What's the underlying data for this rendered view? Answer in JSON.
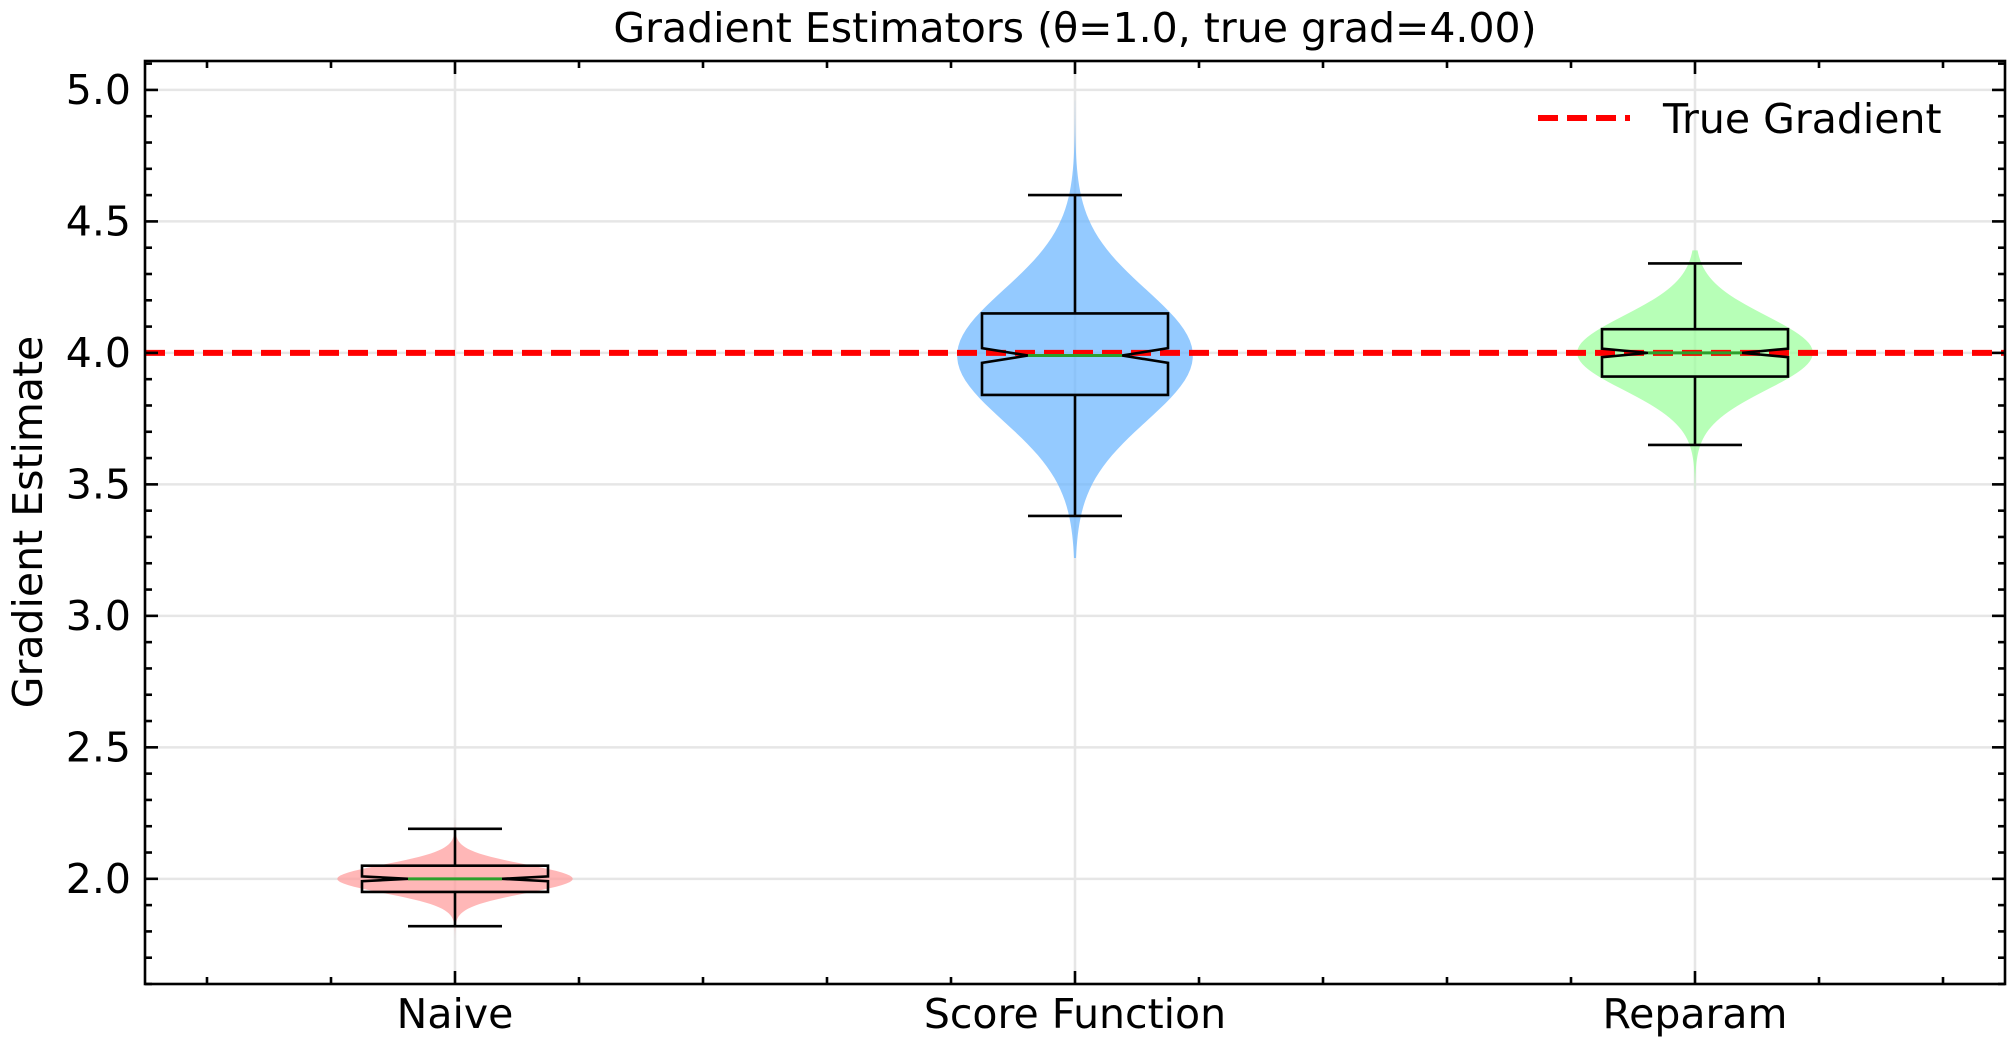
{
  "chart_data": {
    "type": "violin",
    "title": "Gradient Estimators (θ=1.0, true grad=4.00)",
    "xlabel": "",
    "ylabel": "Gradient Estimate",
    "ylim": [
      1.6,
      5.11
    ],
    "xlim": [
      0.5,
      3.5
    ],
    "grid": true,
    "yticks": [
      2.0,
      2.5,
      3.0,
      3.5,
      4.0,
      4.5,
      5.0
    ],
    "ytick_labels": [
      "2.0",
      "2.5",
      "3.0",
      "3.5",
      "4.0",
      "4.5",
      "5.0"
    ],
    "categories": [
      "Naive",
      "Score Function",
      "Reparam"
    ],
    "series": [
      {
        "name": "Naive",
        "color": "#ff9999",
        "violin_range": [
          1.76,
          2.24
        ],
        "violin_max_halfwidth": 0.19,
        "center": 2.0,
        "spread": 0.05,
        "whisker_low": 1.82,
        "q1": 1.95,
        "median": 2.0,
        "q3": 2.05,
        "whisker_high": 2.19
      },
      {
        "name": "Score Function",
        "color": "#66b3ff",
        "violin_range": [
          3.22,
          4.96
        ],
        "violin_max_halfwidth": 0.19,
        "center": 3.99,
        "spread": 0.23,
        "whisker_low": 3.38,
        "q1": 3.84,
        "median": 3.99,
        "q3": 4.15,
        "whisker_high": 4.6
      },
      {
        "name": "Reparam",
        "color": "#99ff99",
        "violin_range": [
          3.48,
          4.39
        ],
        "violin_max_halfwidth": 0.19,
        "center": 4.0,
        "spread": 0.13,
        "whisker_low": 3.65,
        "q1": 3.91,
        "median": 4.0,
        "q3": 4.09,
        "whisker_high": 4.34
      }
    ],
    "reference_line": {
      "label": "True Gradient",
      "value": 4.0,
      "color": "#ff0000",
      "style": "dashed"
    },
    "legend": {
      "position": "upper right",
      "entries": [
        "True Gradient"
      ]
    },
    "median_color": "#2ca02c"
  }
}
